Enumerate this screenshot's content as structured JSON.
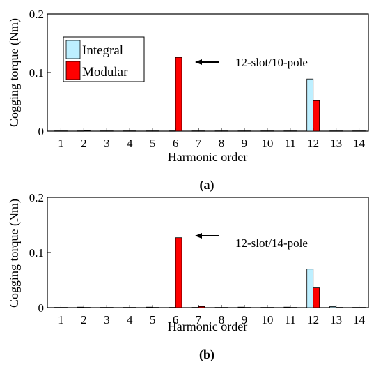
{
  "colors": {
    "integral": "#bdefff",
    "modular": "#ff0000",
    "frame": "#000000",
    "background": "#ffffff"
  },
  "chart_data": [
    {
      "type": "bar",
      "panel_label": "(a)",
      "xlabel": "Harmonic order",
      "ylabel": "Cogging torque (Nm)",
      "ylim": [
        0,
        0.2
      ],
      "yticks": [
        "0",
        "0.1",
        "0.2"
      ],
      "categories": [
        "1",
        "2",
        "3",
        "4",
        "5",
        "6",
        "7",
        "8",
        "9",
        "10",
        "11",
        "12",
        "13",
        "14"
      ],
      "series": [
        {
          "name": "Integral",
          "values": [
            0.0005,
            0.0005,
            0.0005,
            0.0005,
            0.0005,
            0.0005,
            0.0005,
            0.0005,
            0.0005,
            0.0005,
            0.0005,
            0.089,
            0.0005,
            0.0005
          ]
        },
        {
          "name": "Modular",
          "values": [
            0.0005,
            0.001,
            0.0005,
            0.0005,
            0.0005,
            0.126,
            0.0005,
            0.0005,
            0.0005,
            0.0005,
            0.0005,
            0.052,
            0.0005,
            0.0005
          ]
        }
      ],
      "legend": [
        "Integral",
        "Modular"
      ],
      "legend_position": "top-left",
      "annotation": "12-slot/10-pole",
      "annotation_target": "6"
    },
    {
      "type": "bar",
      "panel_label": "(b)",
      "xlabel": "Harmonic order",
      "ylabel": "Cogging torque (Nm)",
      "ylim": [
        0,
        0.2
      ],
      "yticks": [
        "0",
        "0.1",
        "0.2"
      ],
      "categories": [
        "1",
        "2",
        "3",
        "4",
        "5",
        "6",
        "7",
        "8",
        "9",
        "10",
        "11",
        "12",
        "13",
        "14"
      ],
      "series": [
        {
          "name": "Integral",
          "values": [
            0.0005,
            0.001,
            0.0005,
            0.0005,
            0.001,
            0.0005,
            0.0005,
            0.0005,
            0.001,
            0.0005,
            0.001,
            0.07,
            0.002,
            0.0005
          ]
        },
        {
          "name": "Modular",
          "values": [
            0.0005,
            0.0005,
            0.0005,
            0.0005,
            0.0005,
            0.127,
            0.002,
            0.0005,
            0.0005,
            0.0005,
            0.0005,
            0.036,
            0.0005,
            0.0005
          ]
        }
      ],
      "legend": [],
      "annotation": "12-slot/14-pole",
      "annotation_target": "6"
    }
  ]
}
